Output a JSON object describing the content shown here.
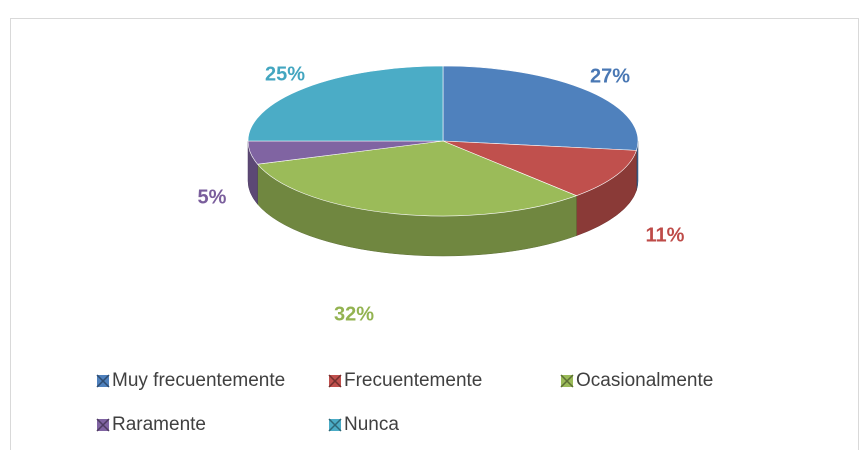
{
  "chart_data": {
    "type": "pie",
    "categories": [
      "Muy frecuentemente",
      "Frecuentemente",
      "Ocasionalmente",
      "Raramente",
      "Nunca"
    ],
    "values": [
      27,
      11,
      32,
      5,
      25
    ],
    "value_labels": [
      "27%",
      "11%",
      "32%",
      "5%",
      "25%"
    ],
    "colors": [
      "#4f81bd",
      "#c0504d",
      "#9bbb59",
      "#8064a2",
      "#4bacc6"
    ],
    "label_colors": [
      "#4a78b4",
      "#be4b48",
      "#93b351",
      "#7a5e9c",
      "#43a6c0"
    ],
    "legend": "bottom"
  }
}
